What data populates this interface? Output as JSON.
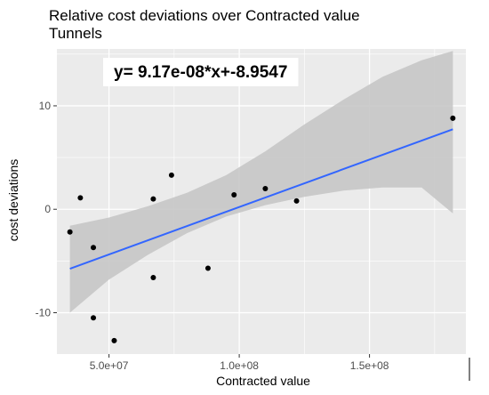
{
  "chart_data": {
    "type": "scatter",
    "title": "Relative cost deviations over Contracted value",
    "subtitle": "Tunnels",
    "xlabel": "Contracted value",
    "ylabel": "cost deviations",
    "annotation": "y= 9.17e-08*x+-8.9547",
    "xlim": [
      30000000,
      187000000
    ],
    "ylim": [
      -14,
      15.5
    ],
    "x_ticks": [
      {
        "value": 50000000,
        "label": "5.0e+07"
      },
      {
        "value": 100000000,
        "label": "1.0e+08"
      },
      {
        "value": 150000000,
        "label": "1.5e+08"
      }
    ],
    "y_ticks": [
      {
        "value": -10,
        "label": "-10"
      },
      {
        "value": 0,
        "label": "0"
      },
      {
        "value": 10,
        "label": "10"
      }
    ],
    "points": [
      {
        "x": 35000000,
        "y": -2.2
      },
      {
        "x": 39000000,
        "y": 1.1
      },
      {
        "x": 44000000,
        "y": -3.7
      },
      {
        "x": 44000000,
        "y": -10.5
      },
      {
        "x": 52000000,
        "y": -12.7
      },
      {
        "x": 67000000,
        "y": 1.0
      },
      {
        "x": 67000000,
        "y": -6.6
      },
      {
        "x": 74000000,
        "y": 3.3
      },
      {
        "x": 88000000,
        "y": -5.7
      },
      {
        "x": 98000000,
        "y": 1.4
      },
      {
        "x": 110000000,
        "y": 2.0
      },
      {
        "x": 122000000,
        "y": 0.8
      },
      {
        "x": 182000000,
        "y": 8.8
      }
    ],
    "fit": {
      "slope": 9.17e-08,
      "intercept": -8.9547,
      "x_range": [
        35000000,
        182000000
      ],
      "band": [
        {
          "x": 35000000,
          "lower": -10.0,
          "upper": -1.6
        },
        {
          "x": 50000000,
          "lower": -6.8,
          "upper": -0.8
        },
        {
          "x": 65000000,
          "lower": -4.4,
          "upper": 0.3
        },
        {
          "x": 80000000,
          "lower": -2.3,
          "upper": 1.6
        },
        {
          "x": 95000000,
          "lower": -0.7,
          "upper": 3.3
        },
        {
          "x": 110000000,
          "lower": 0.4,
          "upper": 5.6
        },
        {
          "x": 125000000,
          "lower": 1.2,
          "upper": 8.2
        },
        {
          "x": 140000000,
          "lower": 1.8,
          "upper": 10.6
        },
        {
          "x": 155000000,
          "lower": 2.1,
          "upper": 12.8
        },
        {
          "x": 170000000,
          "lower": 2.1,
          "upper": 14.4
        },
        {
          "x": 182000000,
          "lower": -0.4,
          "upper": 15.3
        }
      ]
    },
    "grid": true,
    "colors": {
      "panel": "#ebebeb",
      "grid": "#ffffff",
      "band": "#c6c6c6",
      "line": "#3366ff",
      "point": "#000000"
    }
  }
}
